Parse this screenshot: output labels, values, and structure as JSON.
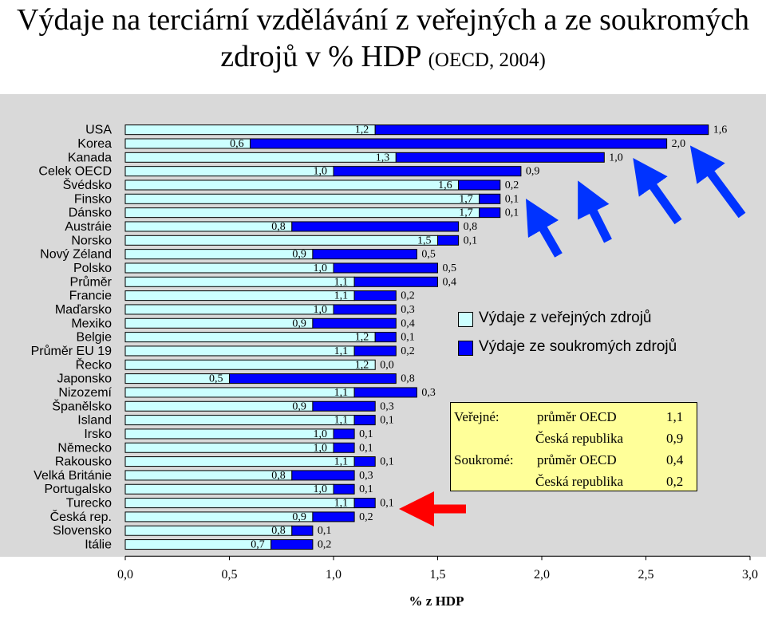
{
  "title": {
    "main": "Výdaje na terciární vzdělávání z veřejných a ze soukromých zdrojů v % HDP",
    "sub": "(OECD, 2004)"
  },
  "chart_data": {
    "type": "bar",
    "orientation": "horizontal",
    "stacked": true,
    "categories": [
      "USA",
      "Korea",
      "Kanada",
      "Celek OECD",
      "Švédsko",
      "Finsko",
      "Dánsko",
      "Austráie",
      "Norsko",
      "Nový Zéland",
      "Polsko",
      "Průměr",
      "Francie",
      "Maďarsko",
      "Mexiko",
      "Belgie",
      "Průměr EU 19",
      "Řecko",
      "Japonsko",
      "Nizozemí",
      "Španělsko",
      "Island",
      "Irsko",
      "Německo",
      "Rakousko",
      "Velká Británie",
      "Portugalsko",
      "Turecko",
      "Česká rep.",
      "Slovensko",
      "Itálie"
    ],
    "series": [
      {
        "name": "Výdaje z veřejných zdrojů",
        "color": "#ccffff",
        "values": [
          1.2,
          0.6,
          1.3,
          1.0,
          1.6,
          1.7,
          1.7,
          0.8,
          1.5,
          0.9,
          1.0,
          1.1,
          1.1,
          1.0,
          0.9,
          1.2,
          1.1,
          1.2,
          0.5,
          1.1,
          0.9,
          1.1,
          1.0,
          1.0,
          1.1,
          0.8,
          1.0,
          1.1,
          0.9,
          0.8,
          0.7
        ],
        "labels": [
          "1,2",
          "0,6",
          "1,3",
          "1,0",
          "1,6",
          "1,7",
          "1,7",
          "0,8",
          "1,5",
          "0,9",
          "1,0",
          "1,1",
          "1,1",
          "1,0",
          "0,9",
          "1,2",
          "1,1",
          "1,2",
          "0,5",
          "1,1",
          "0,9",
          "1,1",
          "1,0",
          "1,0",
          "1,1",
          "0,8",
          "1,0",
          "1,1",
          "0,9",
          "0,8",
          "0,7"
        ]
      },
      {
        "name": "Výdaje ze soukromých zdrojů",
        "color": "#0000ff",
        "values": [
          1.6,
          2.0,
          1.0,
          0.9,
          0.2,
          0.1,
          0.1,
          0.8,
          0.1,
          0.5,
          0.5,
          0.4,
          0.2,
          0.3,
          0.4,
          0.1,
          0.2,
          0.0,
          0.8,
          0.3,
          0.3,
          0.1,
          0.1,
          0.1,
          0.1,
          0.3,
          0.1,
          0.1,
          0.2,
          0.1,
          0.2
        ],
        "labels": [
          "1,6",
          "2,0",
          "1,0",
          "0,9",
          "0,2",
          "0,1",
          "0,1",
          "0,8",
          "0,1",
          "0,5",
          "0,5",
          "0,4",
          "0,2",
          "0,3",
          "0,4",
          "0,1",
          "0,2",
          "0,0",
          "0,8",
          "0,3",
          "0,3",
          "0,1",
          "0,1",
          "0,1",
          "0,1",
          "0,3",
          "0,1",
          "0,1",
          "0,2",
          "0,1",
          "0,2"
        ]
      }
    ],
    "xlim": [
      0,
      3.0
    ],
    "xticks": [
      "0,0",
      "0,5",
      "1,0",
      "1,5",
      "2,0",
      "2,5",
      "3,0"
    ],
    "xlabel": "% z HDP",
    "ylabel": "",
    "grid": false,
    "legend_position": "right"
  },
  "summary": {
    "public_label": "Veřejné:",
    "private_label": "Soukromé:",
    "oecd_label": "průměr OECD",
    "cz_label": "Česká republika",
    "public_oecd": "1,1",
    "public_cz": "0,9",
    "private_oecd": "0,4",
    "private_cz": "0,2"
  },
  "colors": {
    "plot_background": "#d9d9d9",
    "public": "#ccffff",
    "private": "#0000ff",
    "arrow_blue": "#0033ff",
    "arrow_red": "#ff0000",
    "summary_background": "#ffff99"
  }
}
